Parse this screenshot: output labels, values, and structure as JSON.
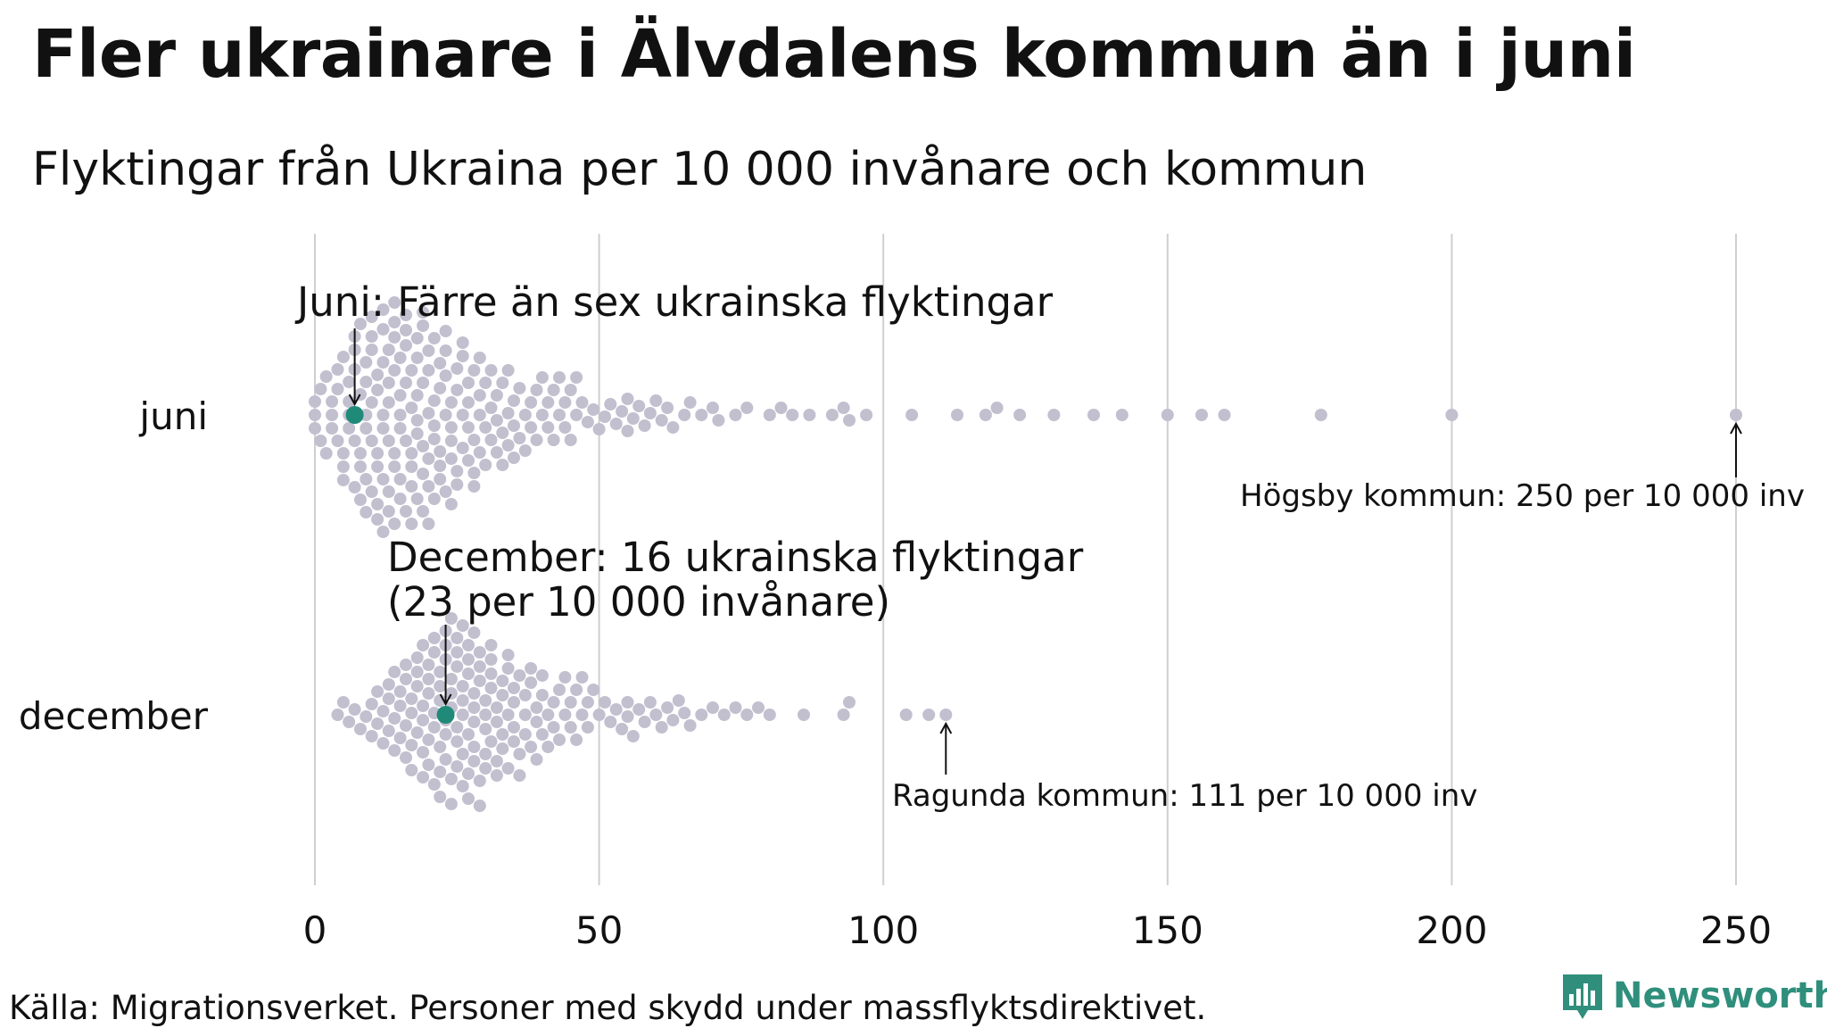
{
  "title": "Fler ukrainare i Älvdalens kommun än i juni",
  "subtitle": "Flyktingar från Ukraina per 10 000 invånare och kommun",
  "source": "Källa: Migrationsverket. Personer med skydd under massflyktsdirektivet.",
  "brand": "Newsworthy",
  "colors": {
    "dot": "#c2bfcf",
    "highlight": "#1f8a78",
    "grid": "#cfcfcf",
    "text": "#111111",
    "brand": "#2f8f7c"
  },
  "chart_data": {
    "type": "scatter",
    "subtype": "beeswarm",
    "xlim": [
      0,
      250
    ],
    "xticks": [
      0,
      50,
      100,
      150,
      200,
      250
    ],
    "grid": "vertical",
    "categories": [
      "juni",
      "december"
    ],
    "series": [
      {
        "name": "juni",
        "highlight": 7,
        "values": [
          0,
          0,
          0,
          1,
          1,
          2,
          2,
          3,
          3,
          3,
          4,
          4,
          4,
          5,
          5,
          5,
          5,
          6,
          6,
          6,
          6,
          7,
          7,
          7,
          7,
          7,
          8,
          8,
          8,
          8,
          8,
          9,
          9,
          9,
          9,
          9,
          9,
          10,
          10,
          10,
          10,
          10,
          10,
          11,
          11,
          11,
          11,
          11,
          11,
          12,
          12,
          12,
          12,
          12,
          12,
          12,
          13,
          13,
          13,
          13,
          13,
          13,
          14,
          14,
          14,
          14,
          14,
          14,
          14,
          15,
          15,
          15,
          15,
          15,
          15,
          16,
          16,
          16,
          16,
          16,
          16,
          17,
          17,
          17,
          17,
          17,
          17,
          18,
          18,
          18,
          18,
          18,
          18,
          19,
          19,
          19,
          19,
          19,
          19,
          20,
          20,
          20,
          20,
          20,
          20,
          21,
          21,
          21,
          21,
          21,
          22,
          22,
          22,
          22,
          22,
          23,
          23,
          23,
          23,
          23,
          24,
          24,
          24,
          24,
          24,
          25,
          25,
          25,
          25,
          26,
          26,
          26,
          26,
          27,
          27,
          27,
          27,
          28,
          28,
          28,
          28,
          29,
          29,
          29,
          29,
          30,
          30,
          30,
          31,
          31,
          31,
          32,
          32,
          32,
          33,
          33,
          33,
          34,
          34,
          34,
          35,
          35,
          35,
          36,
          36,
          37,
          37,
          38,
          38,
          39,
          39,
          40,
          40,
          41,
          41,
          42,
          42,
          43,
          43,
          44,
          44,
          45,
          45,
          46,
          46,
          47,
          48,
          49,
          50,
          51,
          52,
          53,
          54,
          55,
          55,
          56,
          57,
          58,
          59,
          60,
          61,
          62,
          63,
          65,
          66,
          68,
          70,
          71,
          74,
          76,
          80,
          82,
          84,
          87,
          91,
          93,
          94,
          97,
          105,
          113,
          118,
          120,
          124,
          130,
          137,
          142,
          150,
          156,
          160,
          177,
          200,
          250
        ]
      },
      {
        "name": "december",
        "highlight": 23,
        "values": [
          4,
          5,
          6,
          7,
          8,
          9,
          10,
          10,
          11,
          11,
          12,
          12,
          13,
          13,
          13,
          14,
          14,
          14,
          15,
          15,
          15,
          16,
          16,
          16,
          16,
          17,
          17,
          17,
          17,
          18,
          18,
          18,
          18,
          19,
          19,
          19,
          19,
          19,
          20,
          20,
          20,
          20,
          20,
          21,
          21,
          21,
          21,
          21,
          22,
          22,
          22,
          22,
          22,
          22,
          23,
          23,
          23,
          23,
          23,
          23,
          24,
          24,
          24,
          24,
          24,
          24,
          25,
          25,
          25,
          25,
          25,
          25,
          26,
          26,
          26,
          26,
          26,
          26,
          27,
          27,
          27,
          27,
          27,
          27,
          28,
          28,
          28,
          28,
          28,
          28,
          29,
          29,
          29,
          29,
          29,
          30,
          30,
          30,
          30,
          30,
          31,
          31,
          31,
          31,
          31,
          32,
          32,
          32,
          32,
          33,
          33,
          33,
          33,
          34,
          34,
          34,
          34,
          35,
          35,
          35,
          35,
          36,
          36,
          36,
          37,
          37,
          37,
          38,
          38,
          38,
          39,
          39,
          39,
          40,
          40,
          40,
          41,
          41,
          42,
          42,
          43,
          43,
          44,
          44,
          45,
          45,
          46,
          46,
          47,
          47,
          48,
          48,
          49,
          50,
          51,
          52,
          53,
          54,
          55,
          55,
          56,
          57,
          58,
          59,
          60,
          61,
          62,
          63,
          64,
          65,
          66,
          68,
          70,
          72,
          74,
          76,
          78,
          80,
          86,
          93,
          94,
          104,
          108,
          111
        ]
      }
    ],
    "annotations": {
      "juni": "Juni: Färre än sex ukrainska flyktingar",
      "december_line1": "December: 16 ukrainska flyktingar",
      "december_line2": "(23 per 10 000 invånare)",
      "hogsby": "Högsby kommun: 250 per 10 000 inv",
      "ragunda": "Ragunda kommun: 111 per 10 000 inv"
    }
  }
}
